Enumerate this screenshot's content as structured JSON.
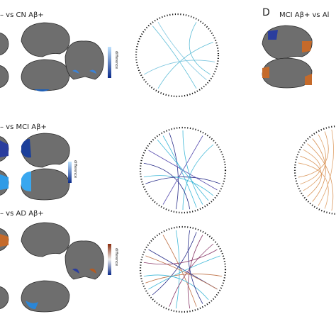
{
  "panels": [
    {
      "title": "– vs CN Aβ+",
      "colorbar_label": "difference"
    },
    {
      "title": "– vs MCI Aβ+",
      "colorbar_label": "difference"
    },
    {
      "title": "– vs AD Aβ+",
      "colorbar_label": "difference"
    }
  ],
  "panel_d": {
    "letter": "D",
    "title": "MCI Aβ+ vs Al"
  }
}
